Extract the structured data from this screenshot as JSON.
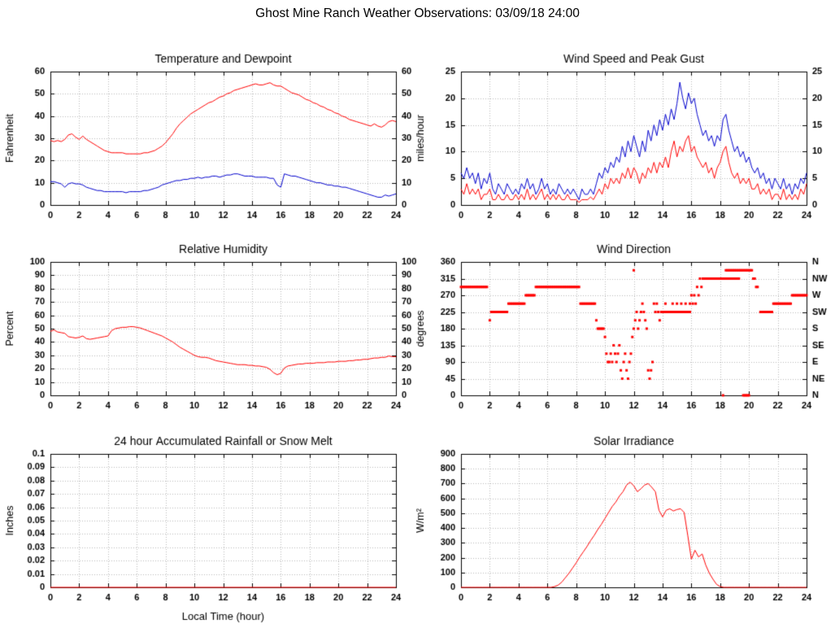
{
  "page_title": "Ghost Mine Ranch Weather Observations: 03/09/18 24:00",
  "colors": {
    "red": "#ff0000",
    "blue": "#0000cc",
    "grid": "#b8b8b8",
    "axis": "#000000"
  },
  "x_axis": {
    "min": 0,
    "max": 24,
    "tick_step": 2,
    "tick_labels": [
      "0",
      "2",
      "4",
      "6",
      "8",
      "10",
      "12",
      "14",
      "16",
      "18",
      "20",
      "22",
      "24"
    ]
  },
  "chart_data": [
    {
      "type": "line",
      "title": "Temperature and Dewpoint",
      "ylabel": "Fahrenheit",
      "ylim": [
        0,
        60
      ],
      "ytick_labels": [
        "0",
        "10",
        "20",
        "30",
        "40",
        "50",
        "60"
      ],
      "right_axis": "mirror",
      "series": [
        {
          "name": "Temperature",
          "color": "red",
          "x_start": 0,
          "x_step": 0.25,
          "values": [
            29,
            28.5,
            29,
            28.5,
            29.5,
            31.5,
            32,
            30.5,
            29.5,
            31,
            29.5,
            28.5,
            27.5,
            26.5,
            25.5,
            24.5,
            24,
            23.5,
            23.5,
            23.5,
            23.5,
            23,
            23,
            23,
            23,
            23,
            23.5,
            23.5,
            24,
            24.5,
            25.5,
            26.5,
            28,
            30,
            32,
            34.5,
            36.5,
            38,
            39.5,
            41,
            42,
            43,
            44,
            45,
            46,
            46.5,
            47.5,
            48.5,
            49,
            50,
            50.5,
            51.5,
            52,
            52.5,
            53,
            53.5,
            54,
            54.5,
            54,
            54,
            54.5,
            55,
            54,
            53.5,
            53.5,
            52.5,
            51.5,
            50.5,
            50,
            49.5,
            48.5,
            47.5,
            47,
            46,
            45.5,
            44.5,
            44,
            43,
            42.5,
            41.5,
            41,
            40,
            39.5,
            38.5,
            38,
            37.5,
            37,
            36.5,
            36,
            35.5,
            36.5,
            35.5,
            35,
            36,
            37.5,
            38,
            37.5
          ]
        },
        {
          "name": "Dewpoint",
          "color": "blue",
          "x_start": 0,
          "x_step": 0.25,
          "values": [
            10.5,
            10.5,
            10,
            9.5,
            8,
            9.5,
            10,
            9.5,
            9.5,
            9,
            8,
            7.5,
            7,
            6.5,
            6.5,
            6,
            6,
            6,
            6,
            6,
            6,
            5.5,
            6,
            6,
            6,
            6,
            6.5,
            6.5,
            7,
            7.5,
            8,
            9,
            9.5,
            10,
            10.5,
            11,
            11,
            11.5,
            11.5,
            12,
            12,
            12.5,
            12,
            12.5,
            12.5,
            13,
            13,
            12.5,
            13,
            13.5,
            13.5,
            14,
            14,
            13.5,
            13,
            13,
            13,
            12.5,
            12.5,
            12.5,
            12.5,
            12,
            12,
            9,
            8,
            14,
            13.5,
            13,
            13,
            12.5,
            12,
            11.5,
            11,
            10.5,
            10,
            10,
            9.5,
            9,
            9,
            8.5,
            8.5,
            8,
            8,
            7.5,
            7,
            6.5,
            6,
            5.5,
            5,
            4.5,
            4,
            3.5,
            3.5,
            4.5,
            4,
            4.5,
            5
          ]
        }
      ]
    },
    {
      "type": "line",
      "title": "Wind Speed and Peak Gust",
      "ylabel": "miles/hour",
      "ylim": [
        0,
        25
      ],
      "ytick_labels": [
        "0",
        "5",
        "10",
        "15",
        "20",
        "25"
      ],
      "right_axis": "mirror",
      "series": [
        {
          "name": "Peak Gust",
          "color": "blue",
          "x_start": 0,
          "x_step": 0.2,
          "values": [
            6,
            5,
            7,
            5,
            6,
            4,
            6,
            3,
            5,
            4,
            6,
            3,
            2,
            4,
            3,
            2,
            4,
            3,
            2,
            3,
            2,
            4,
            3,
            5,
            3,
            4,
            2,
            3,
            5,
            3,
            4,
            2,
            3,
            2,
            4,
            3,
            2,
            3,
            2,
            3,
            2,
            1,
            3,
            2,
            2,
            3,
            2,
            4,
            6,
            5,
            7,
            6,
            8,
            7,
            9,
            8,
            11,
            9,
            12,
            10,
            13,
            11,
            9,
            12,
            10,
            14,
            12,
            15,
            13,
            16,
            14,
            17,
            15,
            18,
            16,
            19,
            23,
            20,
            18,
            21,
            19,
            20,
            17,
            15,
            13,
            14,
            12,
            13,
            11,
            13,
            12,
            16,
            17,
            14,
            12,
            10,
            11,
            9,
            10,
            8,
            9,
            7,
            6,
            7,
            5,
            6,
            4,
            5,
            3,
            5,
            4,
            3,
            5,
            3,
            4,
            2,
            4,
            3,
            5,
            4,
            6
          ]
        },
        {
          "name": "Wind Speed",
          "color": "red",
          "x_start": 0,
          "x_step": 0.2,
          "values": [
            3,
            2,
            4,
            2,
            3,
            2,
            3,
            1,
            2,
            2,
            3,
            1,
            1,
            2,
            1,
            1,
            2,
            1,
            1,
            2,
            1,
            2,
            1,
            3,
            1,
            2,
            1,
            2,
            3,
            1,
            2,
            1,
            2,
            1,
            2,
            1,
            1,
            2,
            1,
            1,
            1,
            0.5,
            1,
            1,
            1,
            1.5,
            1,
            2,
            3,
            2,
            4,
            3,
            5,
            4,
            5,
            4,
            6,
            5,
            7,
            5,
            7,
            6,
            4,
            6,
            5,
            7,
            6,
            8,
            6,
            8,
            7,
            9,
            7,
            10,
            12,
            9,
            11,
            10,
            12,
            13,
            10,
            11,
            9,
            8,
            7,
            8,
            6,
            7,
            5,
            7,
            8,
            10,
            11,
            8,
            6,
            5,
            6,
            4,
            5,
            4,
            5,
            3,
            3,
            4,
            2,
            3,
            2,
            3,
            1,
            2,
            2,
            1,
            3,
            1,
            2,
            1,
            2,
            1,
            3,
            2,
            4
          ]
        }
      ]
    },
    {
      "type": "line",
      "title": "Relative Humidity",
      "ylabel": "Percent",
      "ylim": [
        0,
        100
      ],
      "ytick_labels": [
        "0",
        "10",
        "20",
        "30",
        "40",
        "50",
        "60",
        "70",
        "80",
        "90",
        "100"
      ],
      "right_axis": "mirror",
      "series": [
        {
          "name": "Relative Humidity",
          "color": "red",
          "x_start": 0,
          "x_step": 0.25,
          "values": [
            48,
            49,
            47.5,
            47,
            46.5,
            44,
            43.5,
            43,
            43.5,
            44.5,
            42.5,
            42,
            42.5,
            43,
            43.5,
            44,
            44.5,
            48.5,
            50,
            50.5,
            51,
            51,
            51.5,
            51.5,
            51,
            50.5,
            49.5,
            48.5,
            47.5,
            46.5,
            45.5,
            44.5,
            43,
            41.5,
            40,
            38,
            36,
            34.5,
            33,
            31.5,
            30,
            29,
            28.5,
            28.5,
            28,
            27,
            26,
            25.5,
            25,
            24.5,
            24,
            23.5,
            23,
            23,
            23,
            22.5,
            22.5,
            22,
            22,
            21.5,
            21,
            19.5,
            17,
            15.5,
            16.5,
            20.5,
            22,
            22.5,
            23,
            23.5,
            23.5,
            24,
            24,
            24,
            24.5,
            24.5,
            24.5,
            25,
            25,
            25,
            25.5,
            25.5,
            25.5,
            26,
            26,
            26.5,
            26.5,
            27,
            27,
            27.5,
            28,
            28,
            28.5,
            28.5,
            29.5,
            29,
            29
          ]
        }
      ]
    },
    {
      "type": "scatter",
      "title": "Wind Direction",
      "ylabel": "degrees",
      "ylim": [
        0,
        360
      ],
      "ytick_labels": [
        "0",
        "45",
        "90",
        "135",
        "180",
        "225",
        "270",
        "315",
        "360"
      ],
      "right_axis": [
        "N",
        "NW",
        "W",
        "SW",
        "S",
        "SE",
        "E",
        "NE",
        "N"
      ],
      "series": [
        {
          "name": "Wind Direction",
          "color": "red",
          "run_step": 0.1,
          "runs": [
            [
              0.0,
              1.8,
              292.5
            ],
            [
              2.1,
              3.2,
              225
            ],
            [
              3.3,
              4.4,
              247.5
            ],
            [
              4.5,
              5.1,
              270
            ],
            [
              5.2,
              8.2,
              292.5
            ],
            [
              8.3,
              9.3,
              247.5
            ],
            [
              9.5,
              9.9,
              180
            ],
            [
              14.0,
              15.9,
              225
            ],
            [
              16.8,
              19.3,
              315
            ],
            [
              18.4,
              20.2,
              337.5
            ],
            [
              20.8,
              21.6,
              225
            ],
            [
              21.7,
              22.9,
              247.5
            ],
            [
              23.0,
              24.0,
              270
            ]
          ],
          "points": [
            [
              2.0,
              202.5
            ],
            [
              9.4,
              202.5
            ],
            [
              10.0,
              157.5
            ],
            [
              10.1,
              112.5
            ],
            [
              10.2,
              90
            ],
            [
              10.3,
              90
            ],
            [
              10.4,
              112.5
            ],
            [
              10.5,
              90
            ],
            [
              10.6,
              135
            ],
            [
              10.7,
              112.5
            ],
            [
              10.8,
              90
            ],
            [
              10.9,
              112.5
            ],
            [
              11.0,
              135
            ],
            [
              11.1,
              67.5
            ],
            [
              11.2,
              45
            ],
            [
              11.3,
              90
            ],
            [
              11.4,
              112.5
            ],
            [
              11.5,
              67.5
            ],
            [
              11.6,
              45
            ],
            [
              11.7,
              90
            ],
            [
              11.8,
              112.5
            ],
            [
              11.9,
              157.5
            ],
            [
              12.0,
              337.5
            ],
            [
              12.0,
              180
            ],
            [
              12.1,
              202.5
            ],
            [
              12.2,
              225
            ],
            [
              12.3,
              180
            ],
            [
              12.4,
              202.5
            ],
            [
              12.5,
              225
            ],
            [
              12.6,
              247.5
            ],
            [
              12.7,
              225
            ],
            [
              12.8,
              202.5
            ],
            [
              12.9,
              180
            ],
            [
              13.0,
              67.5
            ],
            [
              13.1,
              45
            ],
            [
              13.2,
              67.5
            ],
            [
              13.3,
              90
            ],
            [
              13.4,
              247.5
            ],
            [
              13.5,
              225
            ],
            [
              13.6,
              247.5
            ],
            [
              13.7,
              225
            ],
            [
              13.8,
              202.5
            ],
            [
              13.9,
              225
            ],
            [
              14.2,
              247.5
            ],
            [
              14.7,
              247.5
            ],
            [
              15.0,
              247.5
            ],
            [
              15.3,
              247.5
            ],
            [
              15.6,
              247.5
            ],
            [
              15.9,
              247.5
            ],
            [
              16.0,
              270
            ],
            [
              16.1,
              247.5
            ],
            [
              16.2,
              270
            ],
            [
              16.3,
              247.5
            ],
            [
              16.4,
              292.5
            ],
            [
              16.5,
              270
            ],
            [
              16.6,
              315
            ],
            [
              16.7,
              292.5
            ],
            [
              18.2,
              0
            ],
            [
              19.6,
              0
            ],
            [
              19.7,
              0
            ],
            [
              19.8,
              0
            ],
            [
              19.9,
              0
            ],
            [
              20.0,
              0
            ],
            [
              20.3,
              315
            ],
            [
              20.4,
              315
            ],
            [
              20.5,
              292.5
            ],
            [
              20.6,
              292.5
            ]
          ]
        }
      ]
    },
    {
      "type": "line",
      "title": "24 hour Accumulated Rainfall or Snow Melt",
      "ylabel": "Inches",
      "xlabel": "Local Time (hour)",
      "ylim": [
        0,
        0.1
      ],
      "ytick_labels": [
        "0",
        "0.01",
        "0.02",
        "0.03",
        "0.04",
        "0.05",
        "0.06",
        "0.07",
        "0.08",
        "0.09",
        "0.1"
      ],
      "right_axis": "none",
      "series": [
        {
          "name": "Accumulated Rainfall",
          "color": "red",
          "x_start": 0,
          "x_step": 24,
          "values": [
            0,
            0
          ]
        }
      ]
    },
    {
      "type": "line",
      "title": "Solar Irradiance",
      "ylabel": "W/m²",
      "ylim": [
        0,
        900
      ],
      "ytick_labels": [
        "0",
        "100",
        "200",
        "300",
        "400",
        "500",
        "600",
        "700",
        "800",
        "900"
      ],
      "right_axis": "none",
      "series": [
        {
          "name": "Solar Irradiance",
          "color": "red",
          "x_start": 0,
          "x_step": 0.25,
          "values": [
            0,
            0,
            0,
            0,
            0,
            0,
            0,
            0,
            0,
            0,
            0,
            0,
            0,
            0,
            0,
            0,
            0,
            0,
            0,
            0,
            0,
            0,
            0,
            0,
            0,
            0,
            5,
            15,
            35,
            65,
            95,
            130,
            165,
            205,
            240,
            275,
            315,
            350,
            390,
            425,
            465,
            505,
            545,
            575,
            615,
            645,
            690,
            710,
            685,
            645,
            665,
            690,
            700,
            675,
            645,
            520,
            475,
            520,
            530,
            515,
            525,
            530,
            505,
            350,
            190,
            250,
            205,
            225,
            150,
            95,
            55,
            20,
            5,
            0,
            0,
            0,
            0,
            0,
            0,
            0,
            0,
            0,
            0,
            0,
            0,
            0,
            0,
            0,
            0,
            0,
            0,
            0,
            0,
            0,
            0,
            0,
            0
          ]
        }
      ]
    }
  ]
}
